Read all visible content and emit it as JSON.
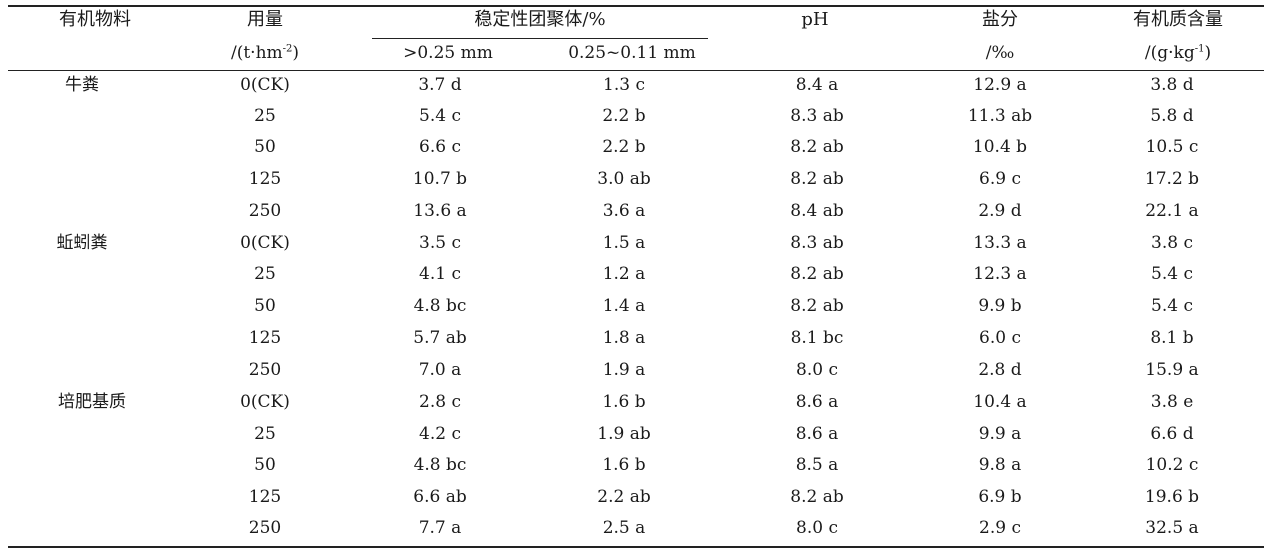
{
  "header": {
    "material": "有机物料",
    "dosage": "用量",
    "dosage_unit_pre": "/(t·hm",
    "dosage_unit_exp": "-2",
    "dosage_unit_post": ")",
    "aggregate": "稳定性团聚体/%",
    "agg_gt": ">0.25 mm",
    "agg_range": "0.25~0.11 mm",
    "ph": "pH",
    "salt": "盐分",
    "salt_unit": "/‰",
    "om": "有机质含量",
    "om_unit_pre": "/(g·kg",
    "om_unit_exp": "-1",
    "om_unit_post": ")"
  },
  "rows": [
    {
      "material": "牛粪",
      "dose": "0(CK)",
      "agg1": "3.7 d",
      "agg2": "1.3 c",
      "ph": "8.4 a",
      "salt": "12.9 a",
      "om": "3.8 d"
    },
    {
      "material": "",
      "dose": "25",
      "agg1": "5.4 c",
      "agg2": "2.2 b",
      "ph": "8.3 ab",
      "salt": "11.3 ab",
      "om": "5.8 d"
    },
    {
      "material": "",
      "dose": "50",
      "agg1": "6.6 c",
      "agg2": "2.2 b",
      "ph": "8.2 ab",
      "salt": "10.4 b",
      "om": "10.5 c"
    },
    {
      "material": "",
      "dose": "125",
      "agg1": "10.7 b",
      "agg2": "3.0 ab",
      "ph": "8.2 ab",
      "salt": "6.9 c",
      "om": "17.2 b"
    },
    {
      "material": "",
      "dose": "250",
      "agg1": "13.6 a",
      "agg2": "3.6 a",
      "ph": "8.4 ab",
      "salt": "2.9 d",
      "om": "22.1 a"
    },
    {
      "material": "蚯蚓粪",
      "dose": "0(CK)",
      "agg1": "3.5 c",
      "agg2": "1.5 a",
      "ph": "8.3 ab",
      "salt": "13.3 a",
      "om": "3.8 c"
    },
    {
      "material": "",
      "dose": "25",
      "agg1": "4.1 c",
      "agg2": "1.2 a",
      "ph": "8.2 ab",
      "salt": "12.3 a",
      "om": "5.4 c"
    },
    {
      "material": "",
      "dose": "50",
      "agg1": "4.8 bc",
      "agg2": "1.4 a",
      "ph": "8.2 ab",
      "salt": "9.9 b",
      "om": "5.4 c"
    },
    {
      "material": "",
      "dose": "125",
      "agg1": "5.7 ab",
      "agg2": "1.8 a",
      "ph": "8.1 bc",
      "salt": "6.0 c",
      "om": "8.1 b"
    },
    {
      "material": "",
      "dose": "250",
      "agg1": "7.0 a",
      "agg2": "1.9 a",
      "ph": "8.0 c",
      "salt": "2.8 d",
      "om": "15.9 a"
    },
    {
      "material": "培肥基质",
      "dose": "0(CK)",
      "agg1": "2.8 c",
      "agg2": "1.6 b",
      "ph": "8.6 a",
      "salt": "10.4 a",
      "om": "3.8 e"
    },
    {
      "material": "",
      "dose": "25",
      "agg1": "4.2 c",
      "agg2": "1.9 ab",
      "ph": "8.6 a",
      "salt": "9.9 a",
      "om": "6.6 d"
    },
    {
      "material": "",
      "dose": "50",
      "agg1": "4.8 bc",
      "agg2": "1.6 b",
      "ph": "8.5 a",
      "salt": "9.8 a",
      "om": "10.2 c"
    },
    {
      "material": "",
      "dose": "125",
      "agg1": "6.6 ab",
      "agg2": "2.2 ab",
      "ph": "8.2 ab",
      "salt": "6.9 b",
      "om": "19.6 b"
    },
    {
      "material": "",
      "dose": "250",
      "agg1": "7.7 a",
      "agg2": "2.5 a",
      "ph": "8.0 c",
      "salt": "2.9 c",
      "om": "32.5 a"
    }
  ]
}
